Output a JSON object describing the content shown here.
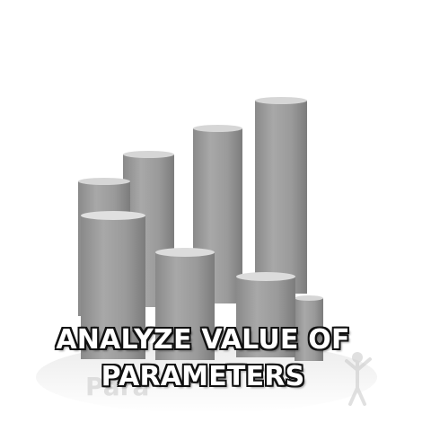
{
  "caption": {
    "line1": "ANALYZE VALUE OF",
    "line2": "PARAMETERS"
  },
  "colors": {
    "background": "#ffffff",
    "cylinder_body": "#9a9a9a",
    "cylinder_top": "#d9d9d9",
    "caption_fill": "#ffffff",
    "caption_outline": "#111111"
  },
  "icons": {
    "scene": "gray-cylinders-bar-graph-icon",
    "figure": "person-figure-icon"
  }
}
